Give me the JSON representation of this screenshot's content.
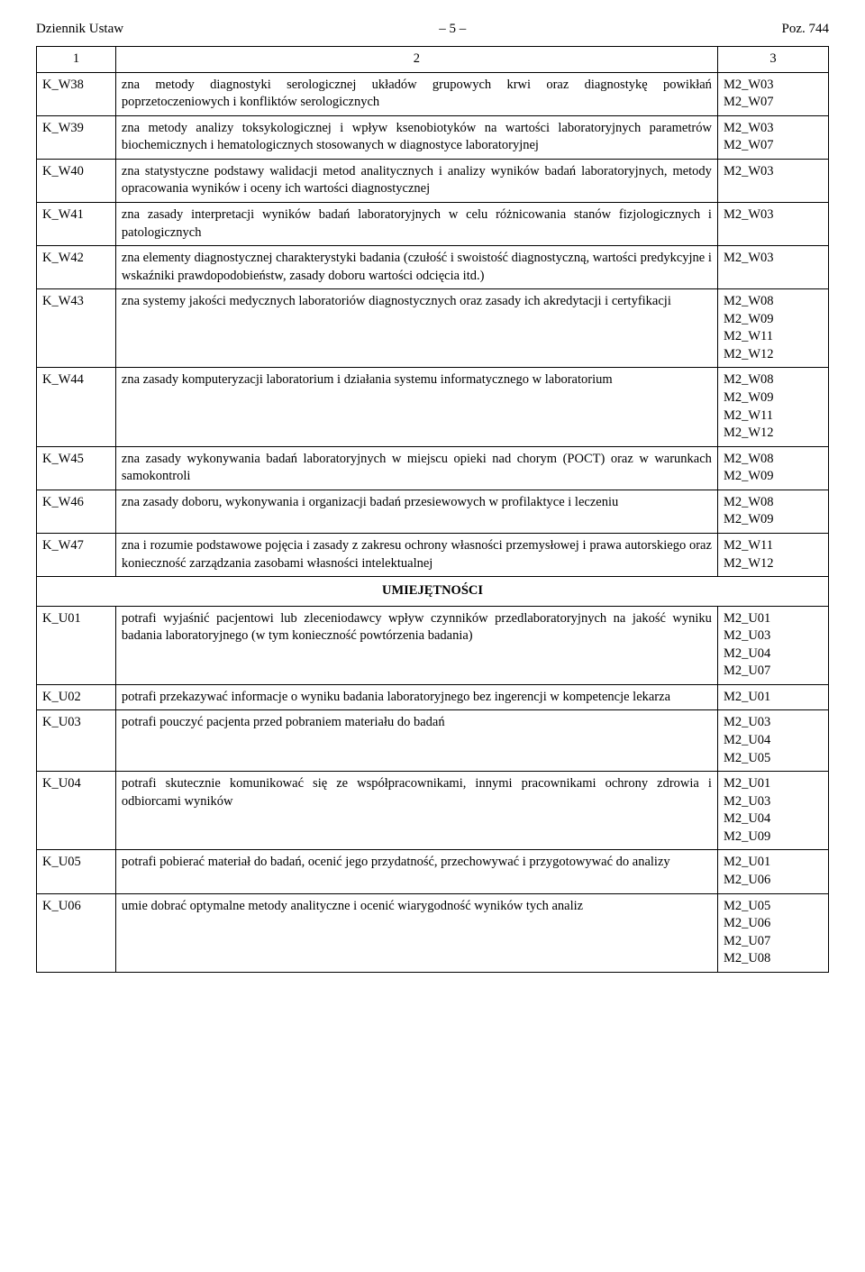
{
  "header": {
    "left": "Dziennik Ustaw",
    "center": "– 5 –",
    "right": "Poz. 744"
  },
  "table": {
    "head": {
      "c1": "1",
      "c2": "2",
      "c3": "3"
    },
    "section_title": "UMIEJĘTNOŚCI",
    "rows_a": [
      {
        "c1": "K_W38",
        "c2": "zna metody diagnostyki serologicznej układów grupowych krwi oraz diagnostykę powikłań poprzetoczeniowych i konfliktów serologicznych",
        "c3": [
          "M2_W03",
          "M2_W07"
        ]
      },
      {
        "c1": "K_W39",
        "c2": "zna metody analizy toksykologicznej i wpływ ksenobiotyków na wartości laboratoryjnych parametrów biochemicznych i hematologicznych stosowanych w diagnostyce laboratoryjnej",
        "c3": [
          "M2_W03",
          "M2_W07"
        ]
      },
      {
        "c1": "K_W40",
        "c2": "zna statystyczne podstawy walidacji metod analitycznych i analizy wyników badań laboratoryjnych, metody opracowania wyników i oceny ich wartości diagnostycznej",
        "c3": [
          "M2_W03"
        ]
      },
      {
        "c1": "K_W41",
        "c2": "zna zasady interpretacji wyników badań laboratoryjnych w celu różnicowania stanów fizjologicznych i patologicznych",
        "c3": [
          "M2_W03"
        ]
      },
      {
        "c1": "K_W42",
        "c2": "zna elementy diagnostycznej charakterystyki badania (czułość i swoistość diagnostyczną, wartości predykcyjne i wskaźniki prawdopodobieństw, zasady doboru wartości odcięcia itd.)",
        "c3": [
          "M2_W03"
        ]
      },
      {
        "c1": "K_W43",
        "c2": "zna systemy jakości medycznych laboratoriów diagnostycznych oraz zasady ich akredytacji i certyfikacji",
        "c3": [
          "M2_W08",
          "M2_W09",
          "M2_W11",
          "M2_W12"
        ]
      },
      {
        "c1": "K_W44",
        "c2": "zna zasady komputeryzacji laboratorium i działania systemu informatycznego w laboratorium",
        "c3": [
          "M2_W08",
          "M2_W09",
          "M2_W11",
          "M2_W12"
        ]
      },
      {
        "c1": "K_W45",
        "c2": "zna zasady wykonywania badań laboratoryjnych w miejscu opieki nad chorym (POCT) oraz w warunkach samokontroli",
        "c3": [
          "M2_W08",
          "M2_W09"
        ]
      },
      {
        "c1": "K_W46",
        "c2": "zna zasady doboru, wykonywania i organizacji badań przesiewowych w profilaktyce i leczeniu",
        "c3": [
          "M2_W08",
          "M2_W09"
        ]
      },
      {
        "c1": "K_W47",
        "c2": "zna i rozumie podstawowe pojęcia i zasady z zakresu ochrony własności przemysłowej i prawa autorskiego oraz konieczność zarządzania zasobami własności intelektualnej",
        "c3": [
          "M2_W11",
          "M2_W12"
        ]
      }
    ],
    "rows_b": [
      {
        "c1": "K_U01",
        "c2": "potrafi wyjaśnić pacjentowi lub zleceniodawcy wpływ czynników przedlaboratoryjnych na jakość wyniku badania laboratoryjnego (w tym konieczność powtórzenia badania)",
        "c3": [
          "M2_U01",
          "M2_U03",
          "M2_U04",
          "M2_U07"
        ]
      },
      {
        "c1": "K_U02",
        "c2": "potrafi przekazywać informacje o wyniku badania laboratoryjnego bez ingerencji w kompetencje lekarza",
        "c3": [
          "M2_U01"
        ]
      },
      {
        "c1": "K_U03",
        "c2": "potrafi pouczyć pacjenta przed pobraniem materiału do badań",
        "c3": [
          "M2_U03",
          "M2_U04",
          "M2_U05"
        ]
      },
      {
        "c1": "K_U04",
        "c2": "potrafi skutecznie komunikować się ze współpracownikami, innymi pracownikami ochrony zdrowia i odbiorcami wyników",
        "c3": [
          "M2_U01",
          "M2_U03",
          "M2_U04",
          "M2_U09"
        ]
      },
      {
        "c1": "K_U05",
        "c2": "potrafi pobierać materiał do badań, ocenić jego przydatność, przechowywać i przygotowywać do analizy",
        "c3": [
          "M2_U01",
          "M2_U06"
        ]
      },
      {
        "c1": "K_U06",
        "c2": "umie dobrać optymalne metody analityczne i ocenić wiarygodność wyników tych analiz",
        "c3": [
          "M2_U05",
          "M2_U06",
          "M2_U07",
          "M2_U08"
        ]
      }
    ]
  }
}
